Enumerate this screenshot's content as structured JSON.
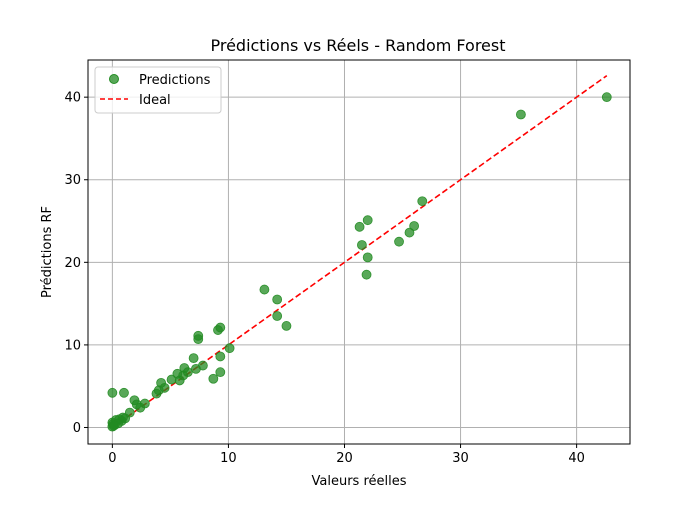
{
  "chart_data": {
    "type": "scatter",
    "title": "Prédictions vs Réels - Random Forest",
    "xlabel": "Valeurs réelles",
    "ylabel": "Prédictions RF",
    "xlim": [
      -2.1,
      44.6
    ],
    "ylim": [
      -2.0,
      44.5
    ],
    "xticks": [
      0,
      10,
      20,
      30,
      40
    ],
    "yticks": [
      0,
      10,
      20,
      30,
      40
    ],
    "grid": true,
    "legend_position": "top-left",
    "series": [
      {
        "name": "Predictions",
        "kind": "scatter",
        "color": "#228b22",
        "points": [
          [
            0.0,
            0.1
          ],
          [
            0.05,
            0.4
          ],
          [
            0.1,
            0.2
          ],
          [
            0.0,
            0.6
          ],
          [
            0.2,
            0.3
          ],
          [
            0.3,
            0.9
          ],
          [
            0.5,
            0.5
          ],
          [
            0.6,
            1.0
          ],
          [
            0.8,
            0.8
          ],
          [
            0.9,
            1.2
          ],
          [
            1.1,
            1.1
          ],
          [
            0.0,
            4.2
          ],
          [
            1.0,
            4.2
          ],
          [
            1.5,
            1.8
          ],
          [
            1.9,
            3.3
          ],
          [
            2.1,
            2.8
          ],
          [
            2.4,
            2.4
          ],
          [
            2.8,
            2.9
          ],
          [
            3.8,
            4.1
          ],
          [
            4.0,
            4.5
          ],
          [
            4.2,
            5.4
          ],
          [
            4.5,
            4.8
          ],
          [
            5.1,
            5.8
          ],
          [
            5.6,
            6.5
          ],
          [
            5.8,
            5.7
          ],
          [
            6.1,
            6.3
          ],
          [
            6.2,
            7.2
          ],
          [
            6.5,
            6.7
          ],
          [
            7.0,
            8.4
          ],
          [
            7.2,
            7.1
          ],
          [
            7.4,
            10.7
          ],
          [
            7.4,
            11.1
          ],
          [
            7.8,
            7.5
          ],
          [
            8.7,
            5.9
          ],
          [
            9.1,
            11.8
          ],
          [
            9.3,
            12.1
          ],
          [
            9.3,
            8.6
          ],
          [
            9.3,
            6.7
          ],
          [
            10.1,
            9.6
          ],
          [
            13.1,
            16.7
          ],
          [
            14.2,
            15.5
          ],
          [
            14.2,
            13.5
          ],
          [
            15.0,
            12.3
          ],
          [
            21.3,
            24.3
          ],
          [
            21.5,
            22.1
          ],
          [
            21.9,
            18.5
          ],
          [
            22.0,
            20.6
          ],
          [
            22.0,
            25.1
          ],
          [
            24.7,
            22.5
          ],
          [
            25.6,
            23.6
          ],
          [
            26.0,
            24.4
          ],
          [
            26.7,
            27.4
          ],
          [
            35.2,
            37.9
          ],
          [
            42.6,
            40.0
          ]
        ]
      },
      {
        "name": "Ideal",
        "kind": "line",
        "style": "dashed",
        "color": "#ff0000",
        "points": [
          [
            0,
            0
          ],
          [
            42.6,
            42.6
          ]
        ]
      }
    ]
  }
}
